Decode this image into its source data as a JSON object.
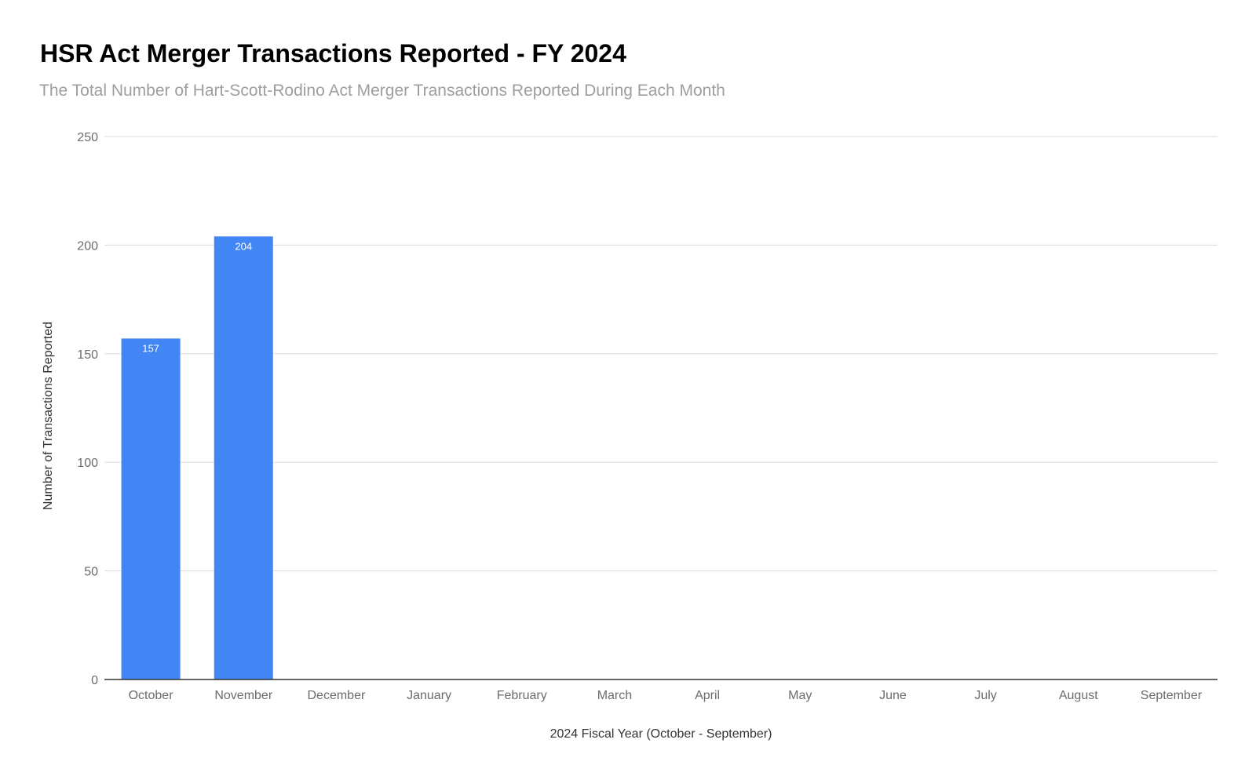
{
  "chart_data": {
    "type": "bar",
    "title": "HSR Act Merger Transactions Reported - FY 2024",
    "subtitle": "The Total Number of Hart-Scott-Rodino Act Merger Transactions Reported During Each Month",
    "xlabel": "2024 Fiscal Year (October - September)",
    "ylabel": "Number of Transactions Reported",
    "categories": [
      "October",
      "November",
      "December",
      "January",
      "February",
      "March",
      "April",
      "May",
      "June",
      "July",
      "August",
      "September"
    ],
    "values": [
      157,
      204,
      null,
      null,
      null,
      null,
      null,
      null,
      null,
      null,
      null,
      null
    ],
    "data_labels": [
      "157",
      "204",
      "",
      "",
      "",
      "",
      "",
      "",
      "",
      "",
      "",
      ""
    ],
    "ylim": [
      0,
      250
    ],
    "yticks": [
      0,
      50,
      100,
      150,
      200,
      250
    ],
    "ytick_labels": [
      "0",
      "50",
      "100",
      "150",
      "200",
      "250"
    ],
    "grid": true,
    "legend": "none",
    "bar_color": "#4285f4"
  }
}
